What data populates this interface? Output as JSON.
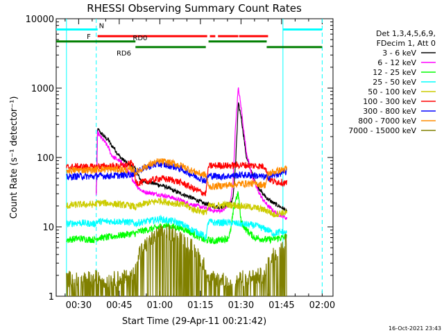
{
  "chart_data": {
    "type": "line",
    "title": "RHESSI Observing Summary Count Rates",
    "xlabel": "Start Time (29-Apr-11 00:21:42)",
    "ylabel": "Count Rate (s⁻¹ detector⁻¹)",
    "yscale": "log",
    "ylim": [
      1,
      10000
    ],
    "xlim_minutes": [
      21.7,
      124
    ],
    "x_tick_labels": [
      "00:30",
      "00:45",
      "01:00",
      "01:15",
      "01:30",
      "01:45",
      "02:00"
    ],
    "x_tick_minutes": [
      30,
      45,
      60,
      75,
      90,
      105,
      120
    ],
    "y_tick_labels": [
      "1",
      "10",
      "100",
      "1000",
      "10000"
    ],
    "y_tick_values": [
      1,
      10,
      100,
      1000,
      10000
    ],
    "grid": false,
    "legend_header": [
      "Det 1,3,4,5,6,9,",
      "FDecim 1, Att 0"
    ],
    "legend_placement": "top-right",
    "timestamp": "16-Oct-2021 23:43",
    "flag_bars": [
      {
        "label": "N",
        "color": "#00ffff",
        "segments": [
          [
            21.7,
            37
          ],
          [
            105.5,
            120
          ]
        ],
        "level": 7000
      },
      {
        "label": "F",
        "color": "#ff0000",
        "segments": [
          [
            37,
            77.5
          ],
          [
            78.5,
            80.5
          ],
          [
            81.5,
            89
          ],
          [
            89.3,
            100
          ]
        ],
        "level": 5600
      },
      {
        "label": "RD0",
        "color": "#007f00",
        "segments": [
          [
            21.7,
            51
          ],
          [
            78,
            99.5
          ]
        ],
        "level": 4700
      },
      {
        "label": "RD6",
        "color": "#007f00",
        "segments": [
          [
            51,
            77
          ],
          [
            99.5,
            120
          ]
        ],
        "level": 3900
      }
    ],
    "vertical_lines": [
      {
        "color": "#00ffff",
        "style": "solid",
        "x": 25.5
      },
      {
        "color": "#00ffff",
        "style": "dashed",
        "x": 36.5
      },
      {
        "color": "#00ffff",
        "style": "solid",
        "x": 105.5
      },
      {
        "color": "#00ffff",
        "style": "dashed",
        "x": 120
      }
    ],
    "series": [
      {
        "name": "3 - 6 keV",
        "color": "#000000",
        "x": [
          36.5,
          37,
          38,
          39,
          40,
          41,
          42,
          43,
          44,
          45,
          46,
          47,
          48,
          49,
          50,
          51,
          52,
          53,
          54,
          56,
          58,
          60,
          62,
          64,
          66,
          68,
          70,
          72,
          74,
          76,
          78,
          80,
          82,
          84,
          86,
          87,
          88,
          89,
          90,
          91,
          92,
          94,
          96,
          98,
          100,
          102,
          104,
          106,
          107
        ],
        "y": [
          30,
          260,
          230,
          210,
          190,
          180,
          150,
          140,
          120,
          105,
          95,
          90,
          80,
          78,
          72,
          68,
          55,
          47,
          45,
          44,
          42,
          40,
          38,
          35,
          32,
          30,
          28,
          26,
          24,
          22,
          21,
          20,
          19,
          20,
          22,
          25,
          80,
          600,
          400,
          200,
          100,
          60,
          40,
          30,
          25,
          22,
          20,
          18,
          16
        ]
      },
      {
        "name": "6 - 12 keV",
        "color": "#ff00ff",
        "x": [
          36.5,
          37,
          38,
          39,
          40,
          41,
          42,
          43,
          44,
          45,
          46,
          47,
          48,
          49,
          50,
          51,
          52,
          53,
          54,
          56,
          58,
          60,
          62,
          64,
          66,
          68,
          70,
          72,
          74,
          76,
          78,
          80,
          82,
          84,
          86,
          87,
          88,
          89,
          90,
          91,
          92,
          94,
          96,
          98,
          100,
          102,
          104,
          106,
          107
        ],
        "y": [
          30,
          230,
          200,
          180,
          160,
          140,
          110,
          100,
          95,
          90,
          82,
          78,
          65,
          55,
          48,
          42,
          37,
          34,
          32,
          31,
          30,
          29,
          28,
          27,
          25,
          24,
          22,
          21,
          20,
          19,
          18,
          17,
          17,
          18,
          22,
          40,
          300,
          1000,
          550,
          250,
          120,
          55,
          35,
          25,
          20,
          17,
          15,
          14,
          13
        ]
      },
      {
        "name": "12 - 25 keV",
        "color": "#00ff00",
        "x": [
          25.5,
          30,
          36,
          37,
          40,
          45,
          50,
          51,
          52,
          55,
          58,
          60,
          62,
          65,
          68,
          70,
          72,
          75,
          77,
          78,
          80,
          82,
          85,
          86,
          87,
          88,
          89,
          90,
          92,
          95,
          100,
          105,
          107
        ],
        "y": [
          6.5,
          6.8,
          6.5,
          7,
          7,
          7.5,
          8,
          8,
          8.5,
          9,
          9.5,
          10,
          10.5,
          10,
          9.5,
          9,
          8,
          7,
          6.2,
          6.5,
          6.2,
          6.5,
          6.8,
          8,
          15,
          25,
          30,
          12,
          9,
          7,
          6.5,
          7,
          7
        ]
      },
      {
        "name": "25 - 50 keV",
        "color": "#00ffff",
        "x": [
          25.5,
          30,
          36,
          37,
          40,
          45,
          50,
          51,
          52,
          55,
          58,
          60,
          62,
          65,
          68,
          70,
          72,
          75,
          77,
          78,
          80,
          85,
          90,
          95,
          100,
          102,
          105,
          107
        ],
        "y": [
          11,
          11.5,
          11,
          12,
          12,
          12,
          11.5,
          11,
          11.5,
          12,
          12.5,
          13,
          12.5,
          12,
          11,
          10,
          9,
          8,
          7,
          12,
          11.5,
          11.5,
          11,
          10.5,
          9,
          8,
          8.5,
          8
        ]
      },
      {
        "name": "50 - 100 keV",
        "color": "#cccc00",
        "x": [
          25.5,
          30,
          36,
          37,
          40,
          45,
          50,
          51,
          52,
          55,
          58,
          60,
          62,
          65,
          68,
          70,
          72,
          75,
          77,
          78,
          80,
          85,
          90,
          95,
          100,
          102,
          105,
          107
        ],
        "y": [
          20,
          21,
          21,
          22,
          22,
          21,
          20,
          19,
          20,
          22,
          23,
          24,
          23,
          22,
          21,
          20,
          18,
          17,
          16,
          20,
          20,
          21,
          20,
          19,
          17,
          15,
          16,
          16
        ]
      },
      {
        "name": "100 - 300 keV",
        "color": "#ff0000",
        "x": [
          25.5,
          30,
          36,
          37,
          40,
          45,
          48,
          50,
          51,
          52,
          55,
          58,
          60,
          62,
          65,
          68,
          70,
          72,
          75,
          77,
          78,
          80,
          82,
          85,
          88,
          90,
          95,
          99,
          100,
          102,
          105,
          107
        ],
        "y": [
          72,
          74,
          73,
          75,
          74,
          75,
          78,
          85,
          45,
          43,
          45,
          48,
          50,
          49,
          47,
          43,
          40,
          36,
          32,
          30,
          75,
          76,
          77,
          76,
          77,
          78,
          76,
          74,
          50,
          45,
          44,
          42
        ]
      },
      {
        "name": "300 - 800 keV",
        "color": "#0000ff",
        "x": [
          25.5,
          30,
          36,
          37,
          40,
          45,
          48,
          50,
          51,
          52,
          55,
          58,
          60,
          62,
          65,
          68,
          70,
          72,
          75,
          77,
          78,
          80,
          82,
          85,
          88,
          90,
          95,
          99,
          100,
          102,
          105,
          107
        ],
        "y": [
          52,
          54,
          53,
          55,
          54,
          55,
          56,
          58,
          60,
          65,
          72,
          78,
          80,
          78,
          74,
          68,
          62,
          56,
          50,
          46,
          55,
          54,
          53,
          54,
          55,
          56,
          55,
          52,
          52,
          55,
          60,
          62
        ]
      },
      {
        "name": "800 - 7000 keV",
        "color": "#ff8c00",
        "x": [
          25.5,
          30,
          36,
          37,
          40,
          45,
          48,
          50,
          51,
          52,
          55,
          58,
          60,
          62,
          65,
          68,
          70,
          72,
          75,
          77,
          78,
          80,
          82,
          85,
          88,
          90,
          95,
          99,
          100,
          102,
          105,
          107
        ],
        "y": [
          65,
          66,
          66,
          68,
          68,
          67,
          66,
          68,
          60,
          64,
          75,
          84,
          88,
          86,
          82,
          76,
          70,
          64,
          58,
          56,
          38,
          38,
          39,
          40,
          41,
          42,
          42,
          40,
          58,
          62,
          66,
          68
        ]
      },
      {
        "name": "7000 - 15000 keV",
        "color": "#808000",
        "x": [
          25.5,
          30,
          36,
          37,
          40,
          45,
          50,
          51,
          52,
          55,
          58,
          60,
          62,
          65,
          68,
          70,
          72,
          75,
          77,
          78,
          80,
          85,
          90,
          95,
          99,
          100,
          102,
          105,
          107
        ],
        "y": [
          1.8,
          1.7,
          1.8,
          1.9,
          1.7,
          1.8,
          1.9,
          3,
          4,
          5.5,
          7,
          8,
          8.5,
          8,
          7,
          6,
          5,
          3.5,
          2.5,
          1.7,
          1.8,
          1.7,
          1.8,
          1.9,
          2,
          3,
          4,
          5.5,
          6.5
        ]
      }
    ]
  }
}
